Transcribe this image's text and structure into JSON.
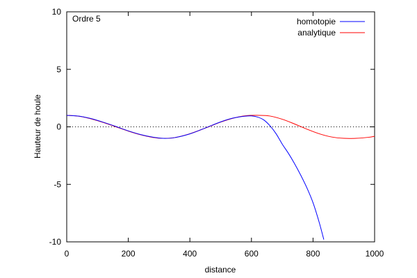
{
  "chart_data": {
    "type": "line",
    "annotation": "Ordre 5",
    "xlabel": "distance",
    "ylabel": "Hauteur de houle",
    "xlim": [
      0,
      1000
    ],
    "ylim": [
      -10,
      10
    ],
    "x_ticks": [
      "0",
      "200",
      "400",
      "600",
      "800",
      "1000"
    ],
    "y_ticks": [
      "10",
      "5",
      "0",
      "-5",
      "-10"
    ],
    "legend_position": "top-right",
    "zero_line": true,
    "grid": false,
    "series": [
      {
        "name": "homotopie",
        "color": "#0000ff",
        "x": [
          0,
          40,
          80,
          120,
          160,
          200,
          240,
          280,
          313,
          350,
          400,
          450,
          500,
          540,
          580,
          600,
          620,
          640,
          660,
          680,
          700,
          720,
          740,
          760,
          780,
          800,
          820,
          835
        ],
        "y": [
          1.0,
          0.93,
          0.71,
          0.39,
          0.03,
          -0.35,
          -0.67,
          -0.9,
          -1.0,
          -0.94,
          -0.61,
          -0.1,
          0.43,
          0.76,
          0.93,
          0.95,
          0.85,
          0.6,
          0.1,
          -0.6,
          -1.5,
          -2.3,
          -3.2,
          -4.2,
          -5.3,
          -6.6,
          -8.3,
          -9.8
        ]
      },
      {
        "name": "analytique",
        "color": "#ff0000",
        "x": [
          0,
          40,
          80,
          120,
          160,
          200,
          240,
          280,
          313,
          350,
          400,
          450,
          500,
          540,
          580,
          626,
          660,
          700,
          740,
          780,
          820,
          860,
          900,
          940,
          980,
          1000
        ],
        "y": [
          1.0,
          0.92,
          0.69,
          0.37,
          0.0,
          -0.37,
          -0.69,
          -0.92,
          -1.0,
          -0.94,
          -0.6,
          -0.11,
          0.41,
          0.75,
          0.96,
          1.0,
          0.94,
          0.66,
          0.25,
          -0.2,
          -0.6,
          -0.88,
          -1.0,
          -1.0,
          -0.91,
          -0.82
        ]
      }
    ]
  }
}
